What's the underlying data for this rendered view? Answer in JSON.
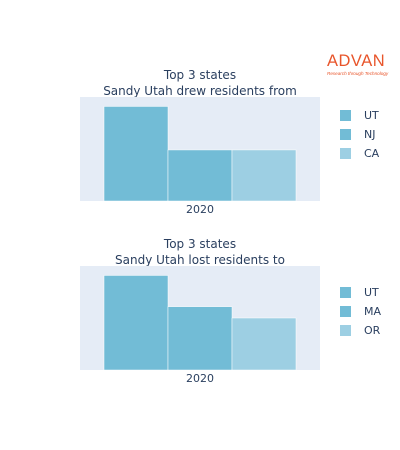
{
  "logo": {
    "word": "ADVAN",
    "tagline": "Research through Technology"
  },
  "colors": {
    "series": [
      "#72bcd6",
      "#72bcd6",
      "#9dcfe3"
    ],
    "plot_bg": "#e5ecf6"
  },
  "chart_data": [
    {
      "type": "bar",
      "title_line1": "Top 3 states",
      "title_line2": "Sandy Utah drew residents from",
      "categories": [
        "2020"
      ],
      "series": [
        {
          "name": "UT",
          "values": [
            100
          ]
        },
        {
          "name": "NJ",
          "values": [
            54
          ]
        },
        {
          "name": "CA",
          "values": [
            54
          ]
        }
      ],
      "ylim": [
        0,
        110
      ],
      "legend": "right",
      "grid": false
    },
    {
      "type": "bar",
      "title_line1": "Top 3 states",
      "title_line2": "Sandy Utah lost residents to",
      "categories": [
        "2020"
      ],
      "series": [
        {
          "name": "UT",
          "values": [
            100
          ]
        },
        {
          "name": "MA",
          "values": [
            67
          ]
        },
        {
          "name": "OR",
          "values": [
            55
          ]
        }
      ],
      "ylim": [
        0,
        110
      ],
      "legend": "right",
      "grid": false
    }
  ]
}
